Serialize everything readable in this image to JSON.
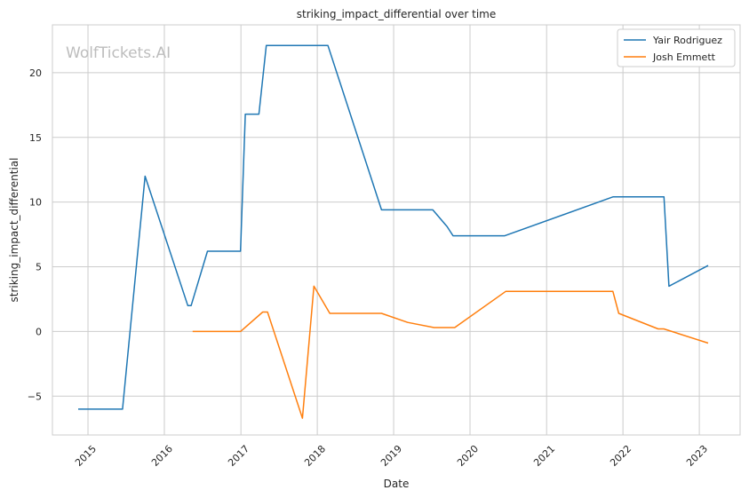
{
  "chart_data": {
    "type": "line",
    "title": "striking_impact_differential over time",
    "xlabel": "Date",
    "ylabel": "striking_impact_differential",
    "watermark": "WolfTickets.AI",
    "grid": true,
    "legend_position": "top-right",
    "xlim": [
      "2014-07-15",
      "2023-07-15"
    ],
    "ylim": [
      -8.0,
      23.7
    ],
    "x_ticks": [
      "2015",
      "2016",
      "2017",
      "2018",
      "2019",
      "2020",
      "2021",
      "2022",
      "2023"
    ],
    "y_ticks": [
      -5,
      0,
      5,
      10,
      15,
      20
    ],
    "y_tick_labels": [
      "−5",
      "0",
      "5",
      "10",
      "15",
      "20"
    ],
    "series": [
      {
        "name": "Yair Rodriguez",
        "color": "#1f77b4",
        "points": [
          [
            "2014-11-15",
            -6.0
          ],
          [
            "2015-06-15",
            -6.0
          ],
          [
            "2015-10-01",
            12.0
          ],
          [
            "2016-04-22",
            2.0
          ],
          [
            "2016-05-08",
            2.0
          ],
          [
            "2016-07-25",
            6.2
          ],
          [
            "2016-12-30",
            6.2
          ],
          [
            "2017-01-22",
            16.8
          ],
          [
            "2017-03-28",
            16.8
          ],
          [
            "2017-05-02",
            22.1
          ],
          [
            "2018-02-21",
            22.1
          ],
          [
            "2018-11-04",
            9.4
          ],
          [
            "2019-07-07",
            9.4
          ],
          [
            "2019-09-14",
            8.1
          ],
          [
            "2019-10-12",
            7.4
          ],
          [
            "2020-06-15",
            7.4
          ],
          [
            "2021-11-14",
            10.4
          ],
          [
            "2022-07-16",
            10.4
          ],
          [
            "2022-08-09",
            3.5
          ],
          [
            "2023-02-12",
            5.1
          ]
        ]
      },
      {
        "name": "Josh Emmett",
        "color": "#ff7f0e",
        "points": [
          [
            "2016-05-15",
            0.0
          ],
          [
            "2016-12-30",
            0.0
          ],
          [
            "2017-04-15",
            1.5
          ],
          [
            "2017-05-08",
            1.5
          ],
          [
            "2017-10-22",
            -6.7
          ],
          [
            "2017-12-16",
            3.5
          ],
          [
            "2018-03-02",
            1.4
          ],
          [
            "2018-11-04",
            1.4
          ],
          [
            "2019-03-09",
            0.7
          ],
          [
            "2019-07-13",
            0.3
          ],
          [
            "2019-10-20",
            0.3
          ],
          [
            "2020-06-20",
            3.1
          ],
          [
            "2021-11-14",
            3.1
          ],
          [
            "2021-12-12",
            1.4
          ],
          [
            "2022-06-18",
            0.2
          ],
          [
            "2022-07-15",
            0.2
          ],
          [
            "2023-02-12",
            -0.9
          ]
        ]
      }
    ]
  }
}
